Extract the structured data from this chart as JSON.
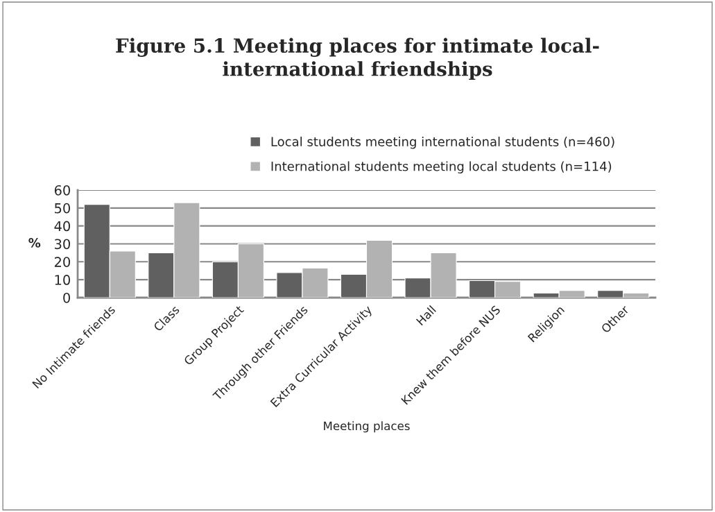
{
  "chart_data": {
    "type": "bar",
    "title": "Figure 5.1 Meeting places for intimate local-\ninternational friendships",
    "categories": [
      "No Intimate friends",
      "Class",
      "Group Project",
      "Through other Friends",
      "Extra Curricular Activity",
      "Hall",
      "Knew them before NUS",
      "Religion",
      "Other"
    ],
    "series": [
      {
        "name": "Local students meeting international students (n=460)",
        "color": "#606060",
        "values": [
          52,
          25,
          20,
          14,
          13,
          11,
          9.5,
          2.5,
          4
        ]
      },
      {
        "name": "International students meeting local students (n=114)",
        "color": "#b2b2b2",
        "values": [
          26,
          53,
          30,
          16.5,
          32,
          25,
          9,
          4,
          2.5
        ]
      }
    ],
    "xlabel": "Meeting places",
    "ylabel": "%",
    "ylim": [
      0,
      60
    ],
    "yticks": [
      0,
      10,
      20,
      30,
      40,
      50,
      60
    ],
    "grid": "y",
    "legend": "top right"
  }
}
